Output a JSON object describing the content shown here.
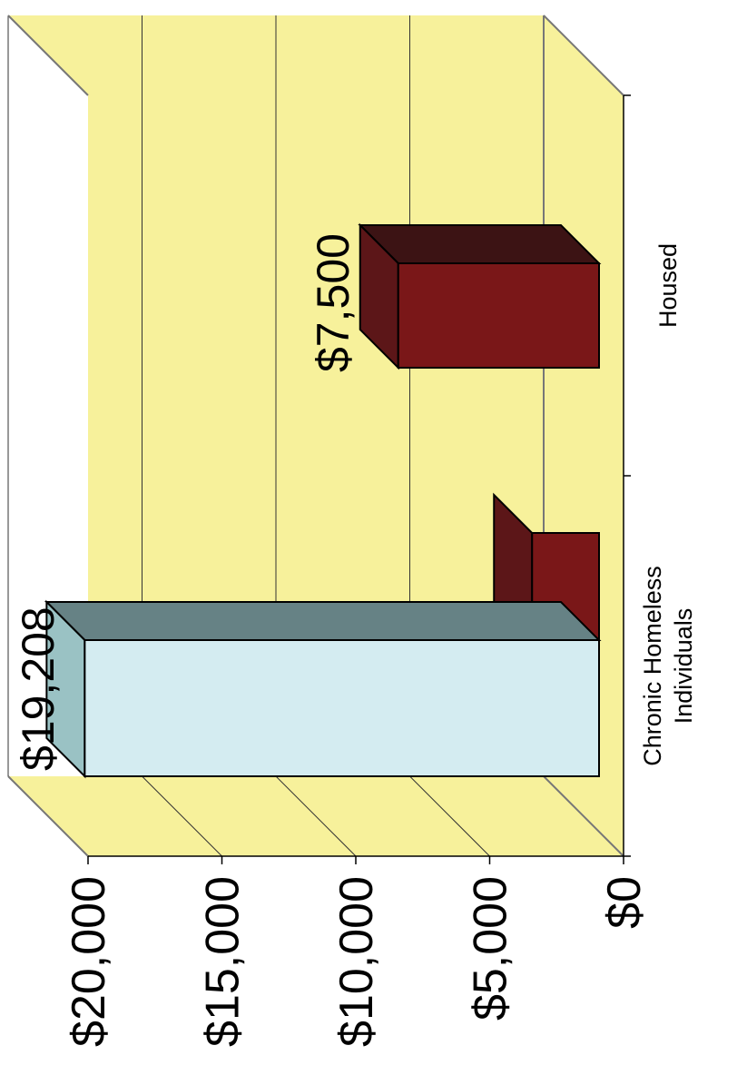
{
  "chart_data": {
    "type": "bar",
    "orientation": "rotated-90-clockwise",
    "three_d": true,
    "categories": [
      "Chronic Homeless Individuals",
      "Housed"
    ],
    "category_lines": [
      [
        "Chronic Homeless",
        "Individuals"
      ],
      [
        "Housed"
      ]
    ],
    "series": [
      {
        "values": [
          19208,
          0
        ],
        "colors": {
          "front": "#d4ecf1",
          "top": "#668285",
          "side": "#9ac2c4"
        }
      },
      {
        "values": [
          2500,
          7500
        ],
        "colors": {
          "front": "#7a1718",
          "top": "#3c1314",
          "side": "#5c1618"
        }
      }
    ],
    "data_labels": [
      "$19,208",
      "$7,500"
    ],
    "y_ticks": [
      0,
      5000,
      10000,
      15000,
      20000
    ],
    "y_tick_labels": [
      "$0",
      "$5,000",
      "$10,000",
      "$15,000",
      "$20,000"
    ],
    "ylim": [
      0,
      20000
    ],
    "grid": true,
    "legend": "none",
    "wall_color": "#f7f19b",
    "grid_color": "#333333"
  }
}
